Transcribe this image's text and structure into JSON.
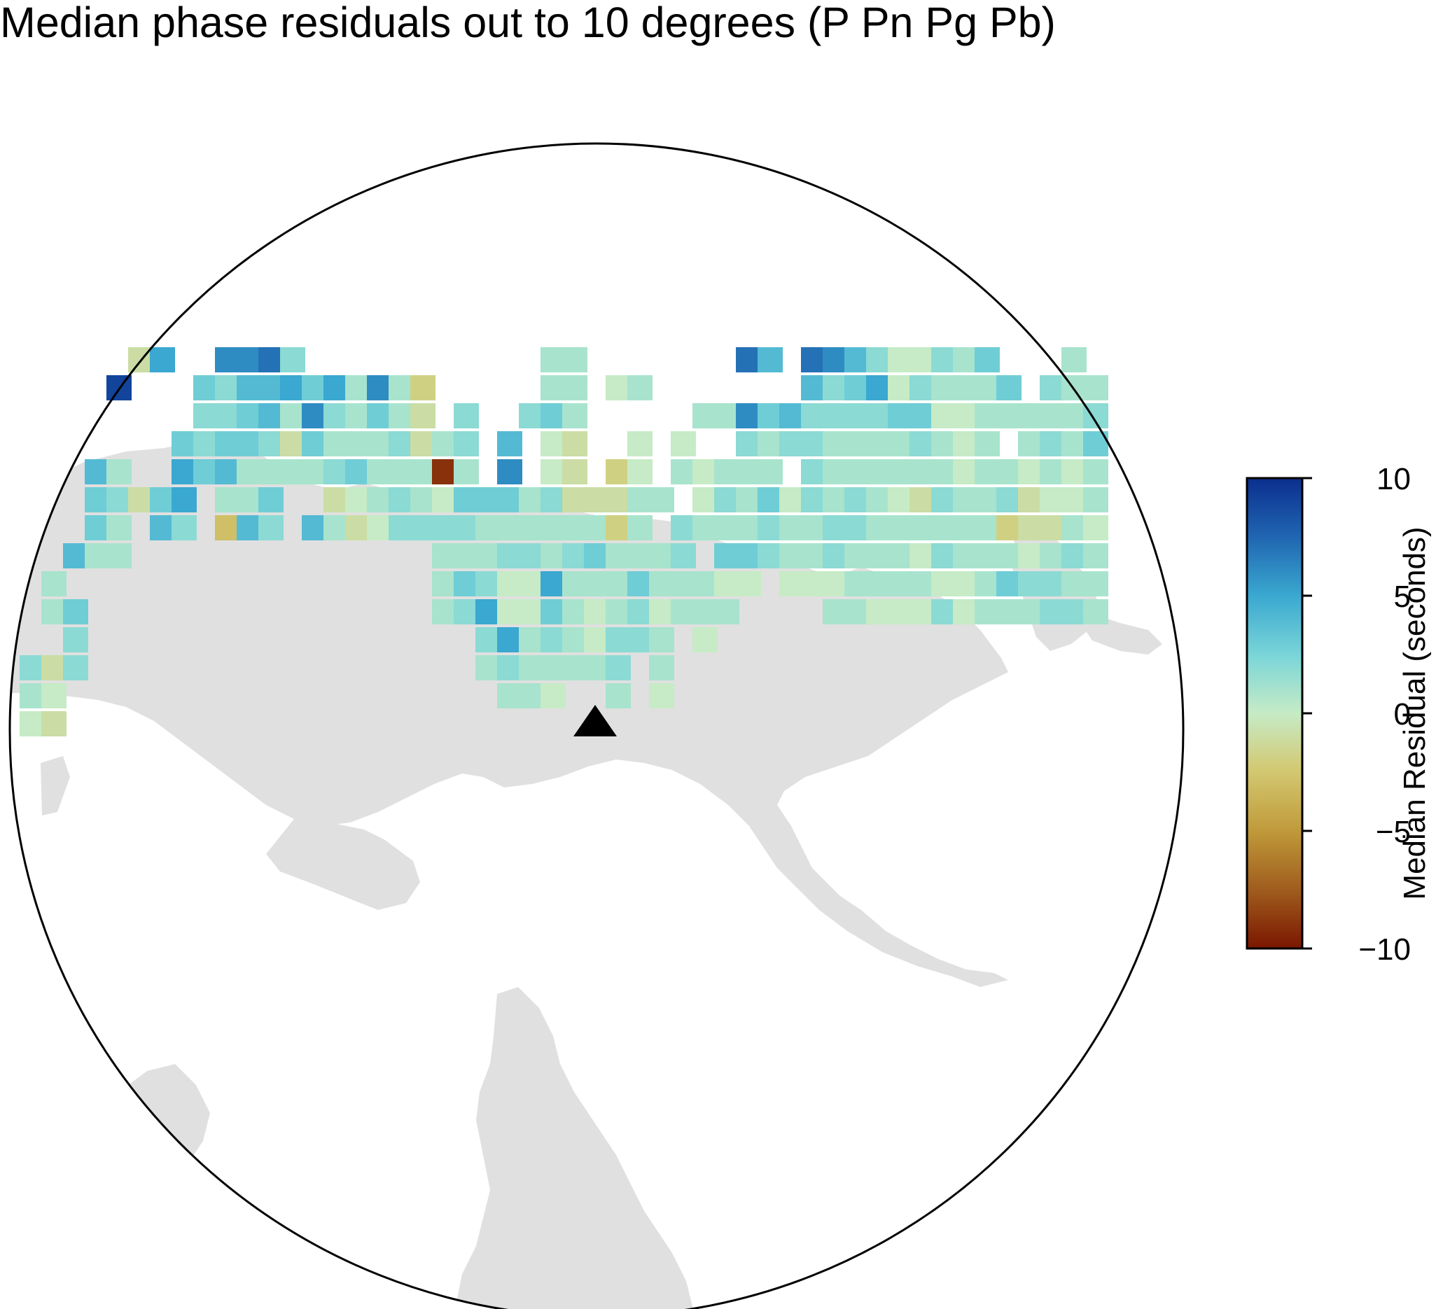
{
  "title": "Median phase residuals out to 10 degrees (P Pn Pg Pb)",
  "colorbar": {
    "label": "Median Residual (seconds)",
    "min": -10,
    "max": 10,
    "ticks": [
      "10",
      "5",
      "0",
      "−5",
      "−10"
    ],
    "tick_values": [
      10,
      5,
      0,
      -5,
      -10
    ]
  },
  "colors": {
    "land": "#e0e0e0",
    "frame": "#000000",
    "station_marker": "#000000",
    "ramp_positive_end": "#0b2f8e",
    "ramp_negative_end": "#7a1600"
  },
  "station": {
    "icon": "triangle-marker"
  },
  "cells": [
    [
      0,
      11,
      2
    ],
    [
      0,
      12,
      1
    ],
    [
      0,
      13,
      0
    ],
    [
      1,
      8,
      1
    ],
    [
      1,
      9,
      1
    ],
    [
      1,
      11,
      -1
    ],
    [
      1,
      12,
      0
    ],
    [
      1,
      13,
      -1
    ],
    [
      2,
      7,
      4
    ],
    [
      2,
      9,
      3
    ],
    [
      2,
      10,
      2
    ],
    [
      2,
      11,
      2
    ],
    [
      3,
      4,
      4
    ],
    [
      3,
      5,
      3
    ],
    [
      3,
      6,
      3
    ],
    [
      3,
      7,
      1
    ],
    [
      4,
      1,
      9
    ],
    [
      4,
      4,
      1
    ],
    [
      4,
      5,
      2
    ],
    [
      4,
      6,
      1
    ],
    [
      4,
      7,
      1
    ],
    [
      5,
      0,
      -1
    ],
    [
      5,
      5,
      -1
    ],
    [
      6,
      0,
      5
    ],
    [
      6,
      5,
      3
    ],
    [
      6,
      6,
      4
    ],
    [
      7,
      3,
      3
    ],
    [
      7,
      4,
      5
    ],
    [
      7,
      5,
      5
    ],
    [
      7,
      6,
      2
    ],
    [
      8,
      1,
      3
    ],
    [
      8,
      2,
      2
    ],
    [
      8,
      3,
      2
    ],
    [
      8,
      4,
      3
    ],
    [
      9,
      0,
      6
    ],
    [
      9,
      1,
      2
    ],
    [
      9,
      2,
      2
    ],
    [
      9,
      3,
      3
    ],
    [
      9,
      4,
      4
    ],
    [
      9,
      5,
      1
    ],
    [
      9,
      6,
      -3
    ],
    [
      10,
      0,
      6
    ],
    [
      10,
      1,
      4
    ],
    [
      10,
      2,
      3
    ],
    [
      10,
      3,
      3
    ],
    [
      10,
      4,
      1
    ],
    [
      10,
      5,
      1
    ],
    [
      10,
      6,
      4
    ],
    [
      11,
      0,
      7
    ],
    [
      11,
      1,
      4
    ],
    [
      11,
      2,
      4
    ],
    [
      11,
      3,
      2
    ],
    [
      11,
      4,
      1
    ],
    [
      11,
      5,
      3
    ],
    [
      11,
      6,
      2
    ],
    [
      12,
      0,
      2
    ],
    [
      12,
      1,
      5
    ],
    [
      12,
      2,
      1
    ],
    [
      12,
      3,
      -1
    ],
    [
      12,
      4,
      1
    ],
    [
      13,
      1,
      3
    ],
    [
      13,
      2,
      6
    ],
    [
      13,
      3,
      3
    ],
    [
      13,
      4,
      1
    ],
    [
      13,
      6,
      4
    ],
    [
      14,
      1,
      5
    ],
    [
      14,
      2,
      2
    ],
    [
      14,
      3,
      1
    ],
    [
      14,
      4,
      2
    ],
    [
      14,
      5,
      -1
    ],
    [
      14,
      6,
      1
    ],
    [
      15,
      1,
      1
    ],
    [
      15,
      2,
      1
    ],
    [
      15,
      3,
      1
    ],
    [
      15,
      4,
      3
    ],
    [
      15,
      5,
      0
    ],
    [
      15,
      6,
      -1
    ],
    [
      16,
      1,
      6
    ],
    [
      16,
      2,
      3
    ],
    [
      16,
      3,
      1
    ],
    [
      16,
      4,
      1
    ],
    [
      16,
      5,
      1
    ],
    [
      16,
      6,
      0
    ],
    [
      17,
      1,
      1
    ],
    [
      17,
      2,
      1
    ],
    [
      17,
      3,
      2
    ],
    [
      17,
      4,
      1
    ],
    [
      17,
      5,
      2
    ],
    [
      17,
      6,
      2
    ],
    [
      18,
      1,
      -2
    ],
    [
      18,
      2,
      -1
    ],
    [
      18,
      3,
      -1
    ],
    [
      18,
      4,
      1
    ],
    [
      18,
      5,
      1
    ],
    [
      18,
      6,
      2
    ],
    [
      19,
      3,
      1
    ],
    [
      19,
      4,
      -9
    ],
    [
      19,
      5,
      0
    ],
    [
      19,
      6,
      2
    ],
    [
      19,
      7,
      1
    ],
    [
      19,
      8,
      1
    ],
    [
      19,
      9,
      1
    ],
    [
      20,
      2,
      2
    ],
    [
      20,
      3,
      2
    ],
    [
      20,
      4,
      1
    ],
    [
      20,
      5,
      3
    ],
    [
      20,
      6,
      2
    ],
    [
      20,
      7,
      1
    ],
    [
      20,
      8,
      3
    ],
    [
      20,
      9,
      2
    ],
    [
      21,
      5,
      3
    ],
    [
      21,
      6,
      1
    ],
    [
      21,
      7,
      1
    ],
    [
      21,
      8,
      2
    ],
    [
      21,
      9,
      5
    ],
    [
      21,
      10,
      2
    ],
    [
      21,
      11,
      1
    ],
    [
      22,
      3,
      4
    ],
    [
      22,
      4,
      6
    ],
    [
      22,
      5,
      3
    ],
    [
      22,
      6,
      1
    ],
    [
      22,
      7,
      2
    ],
    [
      22,
      8,
      0
    ],
    [
      22,
      9,
      0
    ],
    [
      22,
      10,
      5
    ],
    [
      22,
      11,
      2
    ],
    [
      22,
      12,
      1
    ],
    [
      23,
      2,
      2
    ],
    [
      23,
      5,
      1
    ],
    [
      23,
      6,
      1
    ],
    [
      23,
      7,
      2
    ],
    [
      23,
      8,
      0
    ],
    [
      23,
      9,
      0
    ],
    [
      23,
      10,
      1
    ],
    [
      23,
      11,
      1
    ],
    [
      23,
      12,
      1
    ],
    [
      24,
      0,
      1
    ],
    [
      24,
      1,
      1
    ],
    [
      24,
      2,
      3
    ],
    [
      24,
      3,
      0
    ],
    [
      24,
      4,
      0
    ],
    [
      24,
      5,
      2
    ],
    [
      24,
      6,
      1
    ],
    [
      24,
      7,
      1
    ],
    [
      24,
      8,
      5
    ],
    [
      24,
      9,
      3
    ],
    [
      24,
      10,
      2
    ],
    [
      24,
      11,
      1
    ],
    [
      24,
      12,
      0
    ],
    [
      25,
      0,
      1
    ],
    [
      25,
      1,
      1
    ],
    [
      25,
      2,
      1
    ],
    [
      25,
      3,
      -1
    ],
    [
      25,
      4,
      -1
    ],
    [
      25,
      5,
      -1
    ],
    [
      25,
      6,
      1
    ],
    [
      25,
      7,
      2
    ],
    [
      25,
      8,
      1
    ],
    [
      25,
      9,
      1
    ],
    [
      25,
      10,
      1
    ],
    [
      25,
      11,
      1
    ],
    [
      26,
      5,
      -1
    ],
    [
      26,
      6,
      1
    ],
    [
      26,
      7,
      3
    ],
    [
      26,
      8,
      1
    ],
    [
      26,
      9,
      0
    ],
    [
      26,
      10,
      0
    ],
    [
      26,
      11,
      1
    ],
    [
      27,
      1,
      0
    ],
    [
      27,
      4,
      -2
    ],
    [
      27,
      5,
      -1
    ],
    [
      27,
      6,
      -2
    ],
    [
      27,
      7,
      1
    ],
    [
      27,
      8,
      1
    ],
    [
      27,
      9,
      1
    ],
    [
      27,
      10,
      2
    ],
    [
      27,
      11,
      2
    ],
    [
      27,
      12,
      1
    ],
    [
      28,
      1,
      1
    ],
    [
      28,
      3,
      0
    ],
    [
      28,
      4,
      0
    ],
    [
      28,
      5,
      1
    ],
    [
      28,
      6,
      1
    ],
    [
      28,
      7,
      1
    ],
    [
      28,
      8,
      3
    ],
    [
      28,
      9,
      2
    ],
    [
      28,
      10,
      2
    ],
    [
      29,
      5,
      1
    ],
    [
      29,
      7,
      1
    ],
    [
      29,
      8,
      1
    ],
    [
      29,
      9,
      0
    ],
    [
      29,
      10,
      1
    ],
    [
      29,
      11,
      1
    ],
    [
      29,
      12,
      0
    ],
    [
      30,
      3,
      0
    ],
    [
      30,
      4,
      1
    ],
    [
      30,
      6,
      2
    ],
    [
      30,
      7,
      2
    ],
    [
      30,
      8,
      1
    ],
    [
      30,
      9,
      1
    ],
    [
      31,
      2,
      1
    ],
    [
      31,
      4,
      0
    ],
    [
      31,
      5,
      0
    ],
    [
      31,
      6,
      1
    ],
    [
      31,
      8,
      1
    ],
    [
      31,
      9,
      1
    ],
    [
      31,
      10,
      0
    ],
    [
      32,
      2,
      1
    ],
    [
      32,
      4,
      1
    ],
    [
      32,
      5,
      2
    ],
    [
      32,
      6,
      1
    ],
    [
      32,
      7,
      3
    ],
    [
      32,
      8,
      0
    ],
    [
      32,
      9,
      1
    ],
    [
      33,
      0,
      7
    ],
    [
      33,
      2,
      6
    ],
    [
      33,
      3,
      2
    ],
    [
      33,
      4,
      1
    ],
    [
      33,
      5,
      1
    ],
    [
      33,
      6,
      1
    ],
    [
      33,
      7,
      3
    ],
    [
      33,
      8,
      0
    ],
    [
      34,
      0,
      4
    ],
    [
      34,
      2,
      3
    ],
    [
      34,
      3,
      1
    ],
    [
      34,
      4,
      1
    ],
    [
      34,
      5,
      3
    ],
    [
      34,
      6,
      2
    ],
    [
      34,
      7,
      2
    ],
    [
      35,
      2,
      4
    ],
    [
      35,
      3,
      2
    ],
    [
      35,
      5,
      0
    ],
    [
      35,
      6,
      1
    ],
    [
      35,
      7,
      1
    ],
    [
      35,
      8,
      0
    ],
    [
      36,
      0,
      7
    ],
    [
      36,
      1,
      4
    ],
    [
      36,
      2,
      2
    ],
    [
      36,
      3,
      2
    ],
    [
      36,
      4,
      2
    ],
    [
      36,
      5,
      2
    ],
    [
      36,
      6,
      1
    ],
    [
      36,
      7,
      1
    ],
    [
      36,
      8,
      0
    ],
    [
      37,
      0,
      6
    ],
    [
      37,
      1,
      2
    ],
    [
      37,
      2,
      2
    ],
    [
      37,
      3,
      1
    ],
    [
      37,
      4,
      1
    ],
    [
      37,
      5,
      1
    ],
    [
      37,
      6,
      2
    ],
    [
      37,
      7,
      2
    ],
    [
      37,
      8,
      0
    ],
    [
      37,
      9,
      1
    ],
    [
      38,
      0,
      4
    ],
    [
      38,
      1,
      3
    ],
    [
      38,
      2,
      2
    ],
    [
      38,
      3,
      1
    ],
    [
      38,
      4,
      1
    ],
    [
      38,
      5,
      2
    ],
    [
      38,
      6,
      2
    ],
    [
      38,
      7,
      1
    ],
    [
      38,
      8,
      1
    ],
    [
      38,
      9,
      1
    ],
    [
      39,
      0,
      2
    ],
    [
      39,
      1,
      5
    ],
    [
      39,
      2,
      2
    ],
    [
      39,
      3,
      1
    ],
    [
      39,
      4,
      1
    ],
    [
      39,
      5,
      1
    ],
    [
      39,
      6,
      1
    ],
    [
      39,
      7,
      1
    ],
    [
      39,
      8,
      1
    ],
    [
      39,
      9,
      0
    ],
    [
      40,
      0,
      0
    ],
    [
      40,
      1,
      0
    ],
    [
      40,
      2,
      3
    ],
    [
      40,
      3,
      1
    ],
    [
      40,
      4,
      1
    ],
    [
      40,
      5,
      0
    ],
    [
      40,
      6,
      1
    ],
    [
      40,
      7,
      1
    ],
    [
      40,
      8,
      1
    ],
    [
      40,
      9,
      0
    ],
    [
      41,
      0,
      0
    ],
    [
      41,
      1,
      2
    ],
    [
      41,
      2,
      3
    ],
    [
      41,
      3,
      2
    ],
    [
      41,
      4,
      1
    ],
    [
      41,
      5,
      -1
    ],
    [
      41,
      6,
      1
    ],
    [
      41,
      7,
      0
    ],
    [
      41,
      8,
      1
    ],
    [
      41,
      9,
      0
    ],
    [
      42,
      0,
      2
    ],
    [
      42,
      1,
      1
    ],
    [
      42,
      2,
      0
    ],
    [
      42,
      3,
      1
    ],
    [
      42,
      4,
      1
    ],
    [
      42,
      5,
      2
    ],
    [
      42,
      6,
      1
    ],
    [
      42,
      7,
      2
    ],
    [
      42,
      8,
      0
    ],
    [
      42,
      9,
      2
    ],
    [
      43,
      0,
      1
    ],
    [
      43,
      1,
      1
    ],
    [
      43,
      2,
      0
    ],
    [
      43,
      3,
      0
    ],
    [
      43,
      4,
      0
    ],
    [
      43,
      5,
      1
    ],
    [
      43,
      6,
      1
    ],
    [
      43,
      7,
      1
    ],
    [
      43,
      8,
      0
    ],
    [
      43,
      9,
      0
    ],
    [
      44,
      0,
      3
    ],
    [
      44,
      1,
      1
    ],
    [
      44,
      2,
      1
    ],
    [
      44,
      3,
      1
    ],
    [
      44,
      4,
      1
    ],
    [
      44,
      5,
      1
    ],
    [
      44,
      6,
      1
    ],
    [
      44,
      7,
      1
    ],
    [
      44,
      8,
      1
    ],
    [
      44,
      9,
      1
    ],
    [
      45,
      1,
      3
    ],
    [
      45,
      2,
      1
    ],
    [
      45,
      4,
      1
    ],
    [
      45,
      5,
      2
    ],
    [
      45,
      6,
      -2
    ],
    [
      45,
      7,
      1
    ],
    [
      45,
      8,
      3
    ],
    [
      45,
      9,
      1
    ],
    [
      46,
      2,
      1
    ],
    [
      46,
      3,
      1
    ],
    [
      46,
      4,
      0
    ],
    [
      46,
      5,
      -1
    ],
    [
      46,
      6,
      -1
    ],
    [
      46,
      7,
      0
    ],
    [
      46,
      8,
      2
    ],
    [
      46,
      9,
      1
    ],
    [
      47,
      1,
      2
    ],
    [
      47,
      2,
      1
    ],
    [
      47,
      3,
      2
    ],
    [
      47,
      4,
      1
    ],
    [
      47,
      5,
      0
    ],
    [
      47,
      6,
      -1
    ],
    [
      47,
      7,
      1
    ],
    [
      47,
      8,
      2
    ],
    [
      47,
      9,
      2
    ],
    [
      48,
      0,
      1
    ],
    [
      48,
      1,
      1
    ],
    [
      48,
      2,
      1
    ],
    [
      48,
      3,
      1
    ],
    [
      48,
      4,
      0
    ],
    [
      48,
      5,
      0
    ],
    [
      48,
      6,
      1
    ],
    [
      48,
      7,
      2
    ],
    [
      48,
      8,
      1
    ],
    [
      48,
      9,
      2
    ],
    [
      49,
      1,
      1
    ],
    [
      49,
      2,
      2
    ],
    [
      49,
      3,
      3
    ],
    [
      49,
      4,
      1
    ],
    [
      49,
      5,
      1
    ],
    [
      49,
      6,
      0
    ],
    [
      49,
      7,
      1
    ],
    [
      49,
      8,
      1
    ],
    [
      49,
      9,
      1
    ]
  ]
}
